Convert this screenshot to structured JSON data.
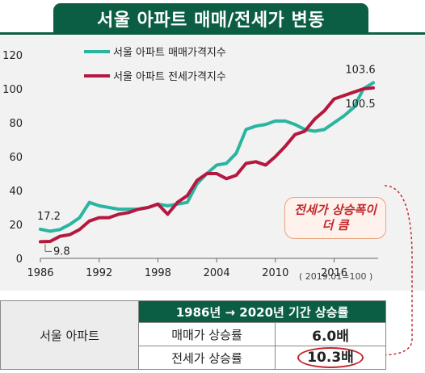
{
  "title": "서울 아파트 매매/전세가 변동",
  "chart_data": {
    "type": "line",
    "x_ticks": [
      1986,
      1992,
      1998,
      2004,
      2010,
      2016
    ],
    "xlim": [
      1986,
      2020
    ],
    "ylim": [
      0,
      120
    ],
    "y_ticks": [
      0,
      20,
      40,
      60,
      80,
      100,
      120
    ],
    "grid": false,
    "legend_position": "top-left",
    "series": [
      {
        "name": "서울 아파트 매매가격지수",
        "color": "#2ab5a0",
        "x": [
          1986,
          1987,
          1988,
          1989,
          1990,
          1991,
          1992,
          1993,
          1994,
          1995,
          1996,
          1997,
          1998,
          1999,
          2000,
          2001,
          2002,
          2003,
          2004,
          2005,
          2006,
          2007,
          2008,
          2009,
          2010,
          2011,
          2012,
          2013,
          2014,
          2015,
          2016,
          2017,
          2018,
          2019,
          2020
        ],
        "values": [
          17.2,
          16,
          17,
          20,
          24,
          33,
          31,
          30,
          29,
          29,
          29,
          30,
          32,
          31,
          32,
          33,
          44,
          50,
          55,
          56,
          62,
          76,
          78,
          79,
          81,
          81,
          79,
          76,
          75,
          76,
          80,
          84,
          89,
          100,
          103.6
        ]
      },
      {
        "name": "서울 아파트 전세가격지수",
        "color": "#b5183f",
        "x": [
          1986,
          1987,
          1988,
          1989,
          1990,
          1991,
          1992,
          1993,
          1994,
          1995,
          1996,
          1997,
          1998,
          1999,
          2000,
          2001,
          2002,
          2003,
          2004,
          2005,
          2006,
          2007,
          2008,
          2009,
          2010,
          2011,
          2012,
          2013,
          2014,
          2015,
          2016,
          2017,
          2018,
          2019,
          2020
        ],
        "values": [
          9.8,
          10,
          13,
          14,
          17,
          22,
          24,
          24,
          26,
          27,
          29,
          30,
          32,
          26,
          33,
          37,
          46,
          50,
          50,
          47,
          49,
          56,
          57,
          55,
          60,
          66,
          73,
          75,
          82,
          87,
          94,
          96,
          98,
          100,
          100.5
        ]
      }
    ],
    "annotations": {
      "start_sale": "17.2",
      "start_jeonse": "9.8",
      "end_sale": "103.6",
      "end_jeonse": "100.5"
    },
    "base_note": "( 2019.01=100 )"
  },
  "callout": {
    "line1": "전세가 상승폭이",
    "line2": "더 큼"
  },
  "table": {
    "row_header": "서울 아파트",
    "header": "1986년 → 2020년 기간 상승률",
    "rows": [
      {
        "label": "매매가 상승률",
        "value": "6.0배"
      },
      {
        "label": "전세가 상승률",
        "value": "10.3배"
      }
    ]
  }
}
